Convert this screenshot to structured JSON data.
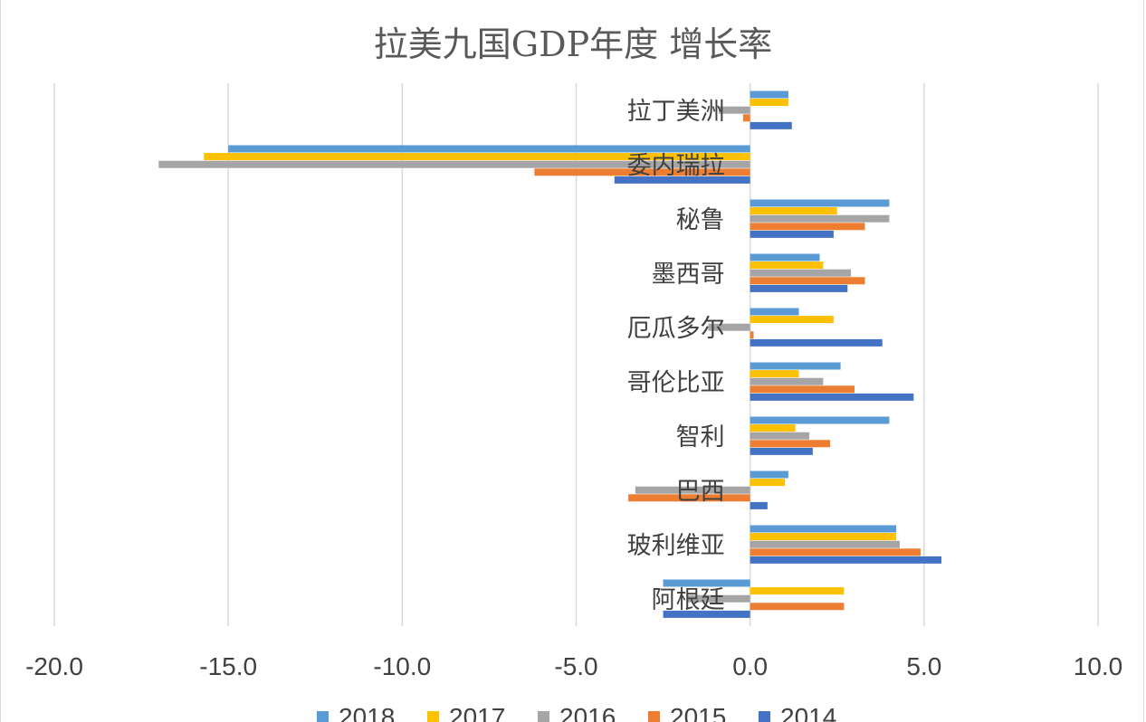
{
  "chart_data": {
    "type": "bar",
    "orientation": "horizontal",
    "title": "拉美九国GDP年度 增长率",
    "xlabel": "",
    "ylabel": "",
    "xlim": [
      -20,
      10
    ],
    "xticks": [
      "-20.0",
      "-15.0",
      "-10.0",
      "-5.0",
      "0.0",
      "5.0",
      "10.0"
    ],
    "xtick_values": [
      -20,
      -15,
      -10,
      -5,
      0,
      5,
      10
    ],
    "grid": "vertical",
    "legend_position": "bottom",
    "categories": [
      "拉丁美洲",
      "委内瑞拉",
      "秘鲁",
      "墨西哥",
      "厄瓜多尔",
      "哥伦比亚",
      "智利",
      "巴西",
      "玻利维亚",
      "阿根廷"
    ],
    "series": [
      {
        "name": "2018",
        "color": "#5B9BD5",
        "values": [
          1.1,
          -15.0,
          4.0,
          2.0,
          1.4,
          2.6,
          4.0,
          1.1,
          4.2,
          -2.5
        ]
      },
      {
        "name": "2017",
        "color": "#FFC000",
        "values": [
          1.1,
          -15.7,
          2.5,
          2.1,
          2.4,
          1.4,
          1.3,
          1.0,
          4.2,
          2.7
        ]
      },
      {
        "name": "2016",
        "color": "#A5A5A5",
        "values": [
          -0.9,
          -17.0,
          4.0,
          2.9,
          -1.2,
          2.1,
          1.7,
          -3.3,
          4.3,
          -1.8
        ]
      },
      {
        "name": "2015",
        "color": "#ED7D31",
        "values": [
          -0.2,
          -6.2,
          3.3,
          3.3,
          0.1,
          3.0,
          2.3,
          -3.5,
          4.9,
          2.7
        ]
      },
      {
        "name": "2014",
        "color": "#4472C4",
        "values": [
          1.2,
          -3.9,
          2.4,
          2.8,
          3.8,
          4.7,
          1.8,
          0.5,
          5.5,
          -2.5
        ]
      }
    ]
  }
}
